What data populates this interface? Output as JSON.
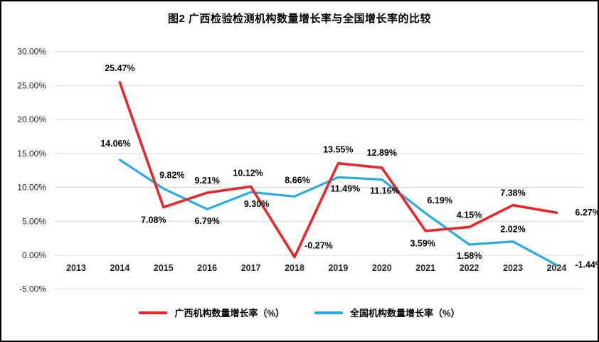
{
  "chart_data": {
    "type": "line",
    "title": "图2 广西检验检测机构数量增长率与全国增长率的比较",
    "categories": [
      "2013",
      "2014",
      "2015",
      "2016",
      "2017",
      "2018",
      "2019",
      "2020",
      "2021",
      "2022",
      "2023",
      "2024"
    ],
    "series": [
      {
        "name": "广西机构数量增长率（%）",
        "color": "#e8262d",
        "values": [
          null,
          25.47,
          7.08,
          9.21,
          10.12,
          -0.27,
          13.55,
          12.89,
          3.59,
          4.15,
          7.38,
          6.27
        ]
      },
      {
        "name": "全国机构数量增长率（%）",
        "color": "#29abe2",
        "values": [
          null,
          14.06,
          9.82,
          6.79,
          9.3,
          8.66,
          11.49,
          11.16,
          6.19,
          1.58,
          2.02,
          -1.44
        ]
      }
    ],
    "y_tick_labels": [
      "30.00%",
      "25.00%",
      "20.00%",
      "15.00%",
      "10.00%",
      "5.00%",
      "0.00%",
      "-5.00%"
    ],
    "ylim": [
      -5,
      30
    ],
    "ytick_step": 5,
    "grid": true,
    "legend_position": "bottom",
    "gridline_color": "#d9d9d9",
    "label_color": "#000000",
    "tick_color": "#262626"
  }
}
